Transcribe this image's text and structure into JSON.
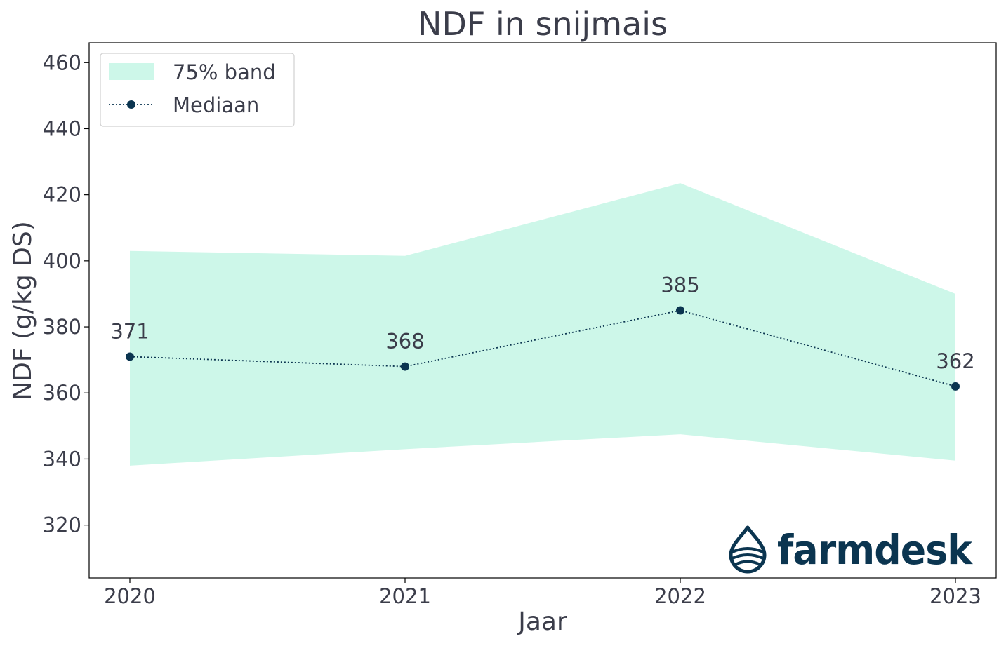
{
  "chart_data": {
    "type": "line",
    "title": "NDF in snijmais",
    "xlabel": "Jaar",
    "ylabel": "NDF (g/kg DS)",
    "x": [
      "2020",
      "2021",
      "2022",
      "2023"
    ],
    "ylim": [
      304,
      466
    ],
    "yticks": [
      320,
      340,
      360,
      380,
      400,
      420,
      440,
      460
    ],
    "series": [
      {
        "name": "Mediaan",
        "values": [
          371,
          368,
          385,
          362
        ],
        "data_labels": [
          "371",
          "368",
          "385",
          "362"
        ]
      }
    ],
    "band": {
      "name": "75% band",
      "lower": [
        338,
        343,
        347.5,
        339.5
      ],
      "upper": [
        403,
        401.5,
        423.5,
        390
      ]
    },
    "legend": {
      "position": "top-left",
      "entries": [
        "75% band",
        "Mediaan"
      ]
    },
    "grid": false
  },
  "colors": {
    "band": "#cdf7e9",
    "median": "#0b3550",
    "text": "#3b3d4a",
    "frame": "#000000"
  },
  "logo": {
    "text": "farmdesk",
    "icon": "water-drop-icon"
  }
}
